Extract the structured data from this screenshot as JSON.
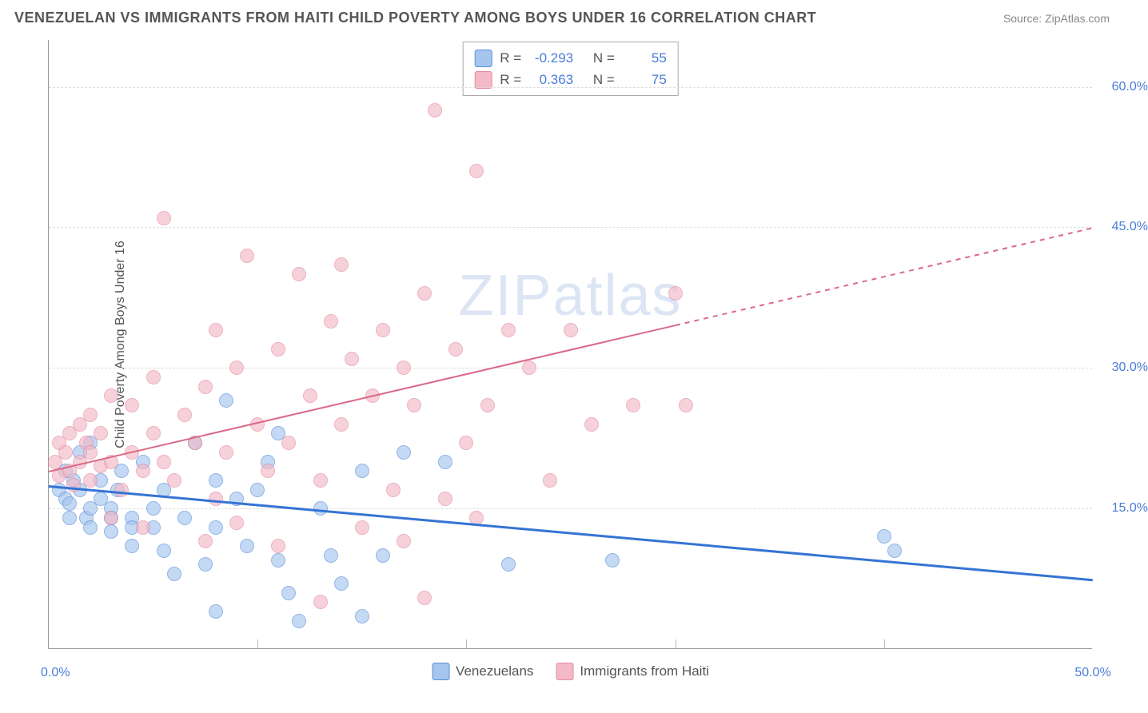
{
  "title": "VENEZUELAN VS IMMIGRANTS FROM HAITI CHILD POVERTY AMONG BOYS UNDER 16 CORRELATION CHART",
  "source": "Source: ZipAtlas.com",
  "watermark": "ZIPatlas",
  "chart": {
    "type": "scatter",
    "y_axis_label": "Child Poverty Among Boys Under 16",
    "xlim": [
      0,
      50
    ],
    "ylim": [
      0,
      65
    ],
    "x_ticks": [
      0,
      50
    ],
    "y_ticks": [
      15,
      30,
      45,
      60
    ],
    "y_tick_labels": [
      "15.0%",
      "30.0%",
      "45.0%",
      "60.0%"
    ],
    "x_tick_end_label": "50.0%",
    "origin_label": "0.0%",
    "vertical_gridlines_x": [
      10,
      20,
      30,
      40
    ],
    "grid_color": "#dddddd",
    "background_color": "#ffffff",
    "point_radius": 9,
    "series": [
      {
        "name": "Venezuelans",
        "fill": "#a6c5ee",
        "stroke": "#5a8fd8",
        "fill_opacity": 0.65,
        "correlation_R": "-0.293",
        "N": "55",
        "trend": {
          "x1": 0,
          "y1": 17.5,
          "x2": 50,
          "y2": 7.5,
          "color": "#3574d4",
          "width": 2.5,
          "dashed": false
        },
        "points": [
          [
            0.5,
            17
          ],
          [
            0.8,
            16
          ],
          [
            0.8,
            19
          ],
          [
            1,
            15.5
          ],
          [
            1,
            14
          ],
          [
            1.2,
            18
          ],
          [
            1.5,
            17
          ],
          [
            1.5,
            21
          ],
          [
            1.8,
            14
          ],
          [
            2,
            15
          ],
          [
            2,
            22
          ],
          [
            2,
            13
          ],
          [
            2.5,
            16
          ],
          [
            2.5,
            18
          ],
          [
            3,
            15
          ],
          [
            3,
            12.5
          ],
          [
            3,
            14
          ],
          [
            3.3,
            17
          ],
          [
            3.5,
            19
          ],
          [
            4,
            14
          ],
          [
            4,
            11
          ],
          [
            4,
            13
          ],
          [
            4.5,
            20
          ],
          [
            5,
            15
          ],
          [
            5,
            13
          ],
          [
            5.5,
            17
          ],
          [
            5.5,
            10.5
          ],
          [
            6,
            8
          ],
          [
            6.5,
            14
          ],
          [
            7,
            22
          ],
          [
            7.5,
            9
          ],
          [
            8,
            18
          ],
          [
            8,
            13
          ],
          [
            8.5,
            26.5
          ],
          [
            9,
            16
          ],
          [
            9.5,
            11
          ],
          [
            10,
            17
          ],
          [
            10.5,
            20
          ],
          [
            11,
            23
          ],
          [
            11,
            9.5
          ],
          [
            11.5,
            6
          ],
          [
            12,
            3
          ],
          [
            13,
            15
          ],
          [
            13.5,
            10
          ],
          [
            14,
            7
          ],
          [
            15,
            19
          ],
          [
            15,
            3.5
          ],
          [
            16,
            10
          ],
          [
            17,
            21
          ],
          [
            19,
            20
          ],
          [
            22,
            9
          ],
          [
            27,
            9.5
          ],
          [
            40,
            12
          ],
          [
            40.5,
            10.5
          ],
          [
            8,
            4
          ]
        ]
      },
      {
        "name": "Immigrants from Haiti",
        "fill": "#f4b9c7",
        "stroke": "#e38aa1",
        "fill_opacity": 0.65,
        "correlation_R": "0.363",
        "N": "75",
        "trend": {
          "x1": 0,
          "y1": 19,
          "x2": 50,
          "y2": 45,
          "color": "#d96a88",
          "width": 2,
          "dashed_after_x": 30
        },
        "points": [
          [
            0.3,
            20
          ],
          [
            0.5,
            18.5
          ],
          [
            0.5,
            22
          ],
          [
            0.8,
            21
          ],
          [
            1,
            19
          ],
          [
            1,
            23
          ],
          [
            1.2,
            17.5
          ],
          [
            1.5,
            24
          ],
          [
            1.5,
            20
          ],
          [
            1.8,
            22
          ],
          [
            2,
            18
          ],
          [
            2,
            25
          ],
          [
            2,
            21
          ],
          [
            2.5,
            19.5
          ],
          [
            2.5,
            23
          ],
          [
            3,
            27
          ],
          [
            3,
            20
          ],
          [
            3,
            14
          ],
          [
            3.5,
            17
          ],
          [
            4,
            26
          ],
          [
            4,
            21
          ],
          [
            4.5,
            13
          ],
          [
            4.5,
            19
          ],
          [
            5,
            29
          ],
          [
            5,
            23
          ],
          [
            5.5,
            20
          ],
          [
            5.5,
            46
          ],
          [
            6,
            18
          ],
          [
            6.5,
            25
          ],
          [
            7,
            22
          ],
          [
            7.5,
            28
          ],
          [
            8,
            16
          ],
          [
            8,
            34
          ],
          [
            8.5,
            21
          ],
          [
            9,
            30
          ],
          [
            9,
            13.5
          ],
          [
            9.5,
            42
          ],
          [
            10,
            24
          ],
          [
            10.5,
            19
          ],
          [
            11,
            32
          ],
          [
            11.5,
            22
          ],
          [
            12,
            40
          ],
          [
            12.5,
            27
          ],
          [
            13,
            18
          ],
          [
            13.5,
            35
          ],
          [
            14,
            24
          ],
          [
            14,
            41
          ],
          [
            14.5,
            31
          ],
          [
            15,
            13
          ],
          [
            15.5,
            27
          ],
          [
            16,
            34
          ],
          [
            16.5,
            17
          ],
          [
            17,
            30
          ],
          [
            17.5,
            26
          ],
          [
            18,
            38
          ],
          [
            18.5,
            57.5
          ],
          [
            19,
            16
          ],
          [
            19.5,
            32
          ],
          [
            20,
            22
          ],
          [
            20.5,
            14
          ],
          [
            20.5,
            51
          ],
          [
            21,
            26
          ],
          [
            22,
            34
          ],
          [
            23,
            30
          ],
          [
            24,
            18
          ],
          [
            25,
            34
          ],
          [
            26,
            24
          ],
          [
            28,
            26
          ],
          [
            30,
            38
          ],
          [
            30.5,
            26
          ],
          [
            13,
            5
          ],
          [
            18,
            5.5
          ],
          [
            7.5,
            11.5
          ],
          [
            11,
            11
          ],
          [
            17,
            11.5
          ]
        ]
      }
    ],
    "legend": {
      "series1_label": "Venezuelans",
      "series2_label": "Immigrants from Haiti",
      "R_label": "R =",
      "N_label": "N ="
    }
  }
}
